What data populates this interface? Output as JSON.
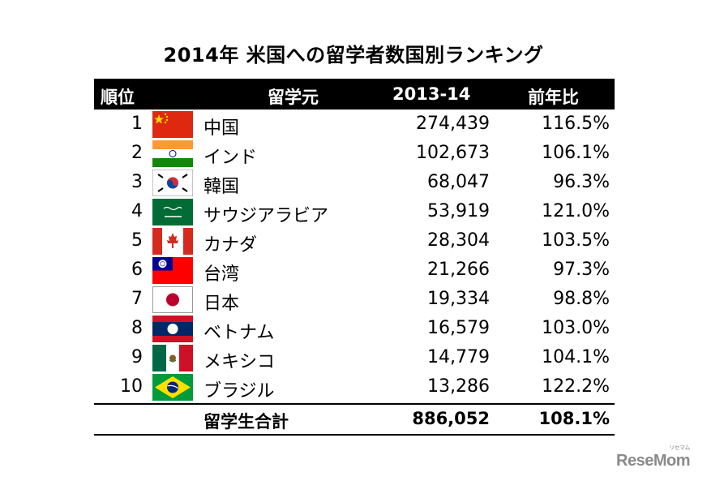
{
  "title": "2014年 米国への留学者数国別ランキング",
  "chart_data": {
    "type": "table",
    "title": "2014年 米国への留学者数国別ランキング",
    "columns": [
      "順位",
      "留学元",
      "2013-14",
      "前年比"
    ],
    "rows": [
      {
        "rank": "1",
        "country": "中国",
        "flag": "china-flag-icon",
        "students": "274,439",
        "ratio": "116.5%"
      },
      {
        "rank": "2",
        "country": "インド",
        "flag": "india-flag-icon",
        "students": "102,673",
        "ratio": "106.1%"
      },
      {
        "rank": "3",
        "country": "韓国",
        "flag": "korea-flag-icon",
        "students": "68,047",
        "ratio": "96.3%"
      },
      {
        "rank": "4",
        "country": "サウジアラビア",
        "flag": "saudi-arabia-flag-icon",
        "students": "53,919",
        "ratio": "121.0%"
      },
      {
        "rank": "5",
        "country": "カナダ",
        "flag": "canada-flag-icon",
        "students": "28,304",
        "ratio": "103.5%"
      },
      {
        "rank": "6",
        "country": "台湾",
        "flag": "taiwan-flag-icon",
        "students": "21,266",
        "ratio": "97.3%"
      },
      {
        "rank": "7",
        "country": "日本",
        "flag": "japan-flag-icon",
        "students": "19,334",
        "ratio": "98.8%"
      },
      {
        "rank": "8",
        "country": "ベトナム",
        "flag": "vietnam-flag-icon",
        "students": "16,579",
        "ratio": "103.0%"
      },
      {
        "rank": "9",
        "country": "メキシコ",
        "flag": "mexico-flag-icon",
        "students": "14,779",
        "ratio": "104.1%"
      },
      {
        "rank": "10",
        "country": "ブラジル",
        "flag": "brazil-flag-icon",
        "students": "13,286",
        "ratio": "122.2%"
      }
    ],
    "total": {
      "label": "留学生合計",
      "students": "886,052",
      "ratio": "108.1%"
    }
  },
  "logo": {
    "text": "ReseMom",
    "subtext": "リセマム"
  }
}
